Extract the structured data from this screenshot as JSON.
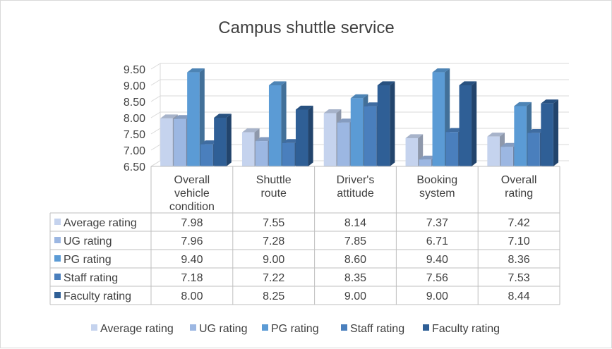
{
  "chart_data": {
    "type": "bar",
    "title": "Campus shuttle service",
    "categories": [
      [
        "Overall",
        "vehicle",
        "condition"
      ],
      [
        "Shuttle",
        "route"
      ],
      [
        "Driver's",
        "attitude"
      ],
      [
        "Booking",
        "system"
      ],
      [
        "Overall",
        "rating"
      ]
    ],
    "y_ticks": [
      "6.50",
      "7.00",
      "7.50",
      "8.00",
      "8.50",
      "9.00",
      "9.50"
    ],
    "ylim": [
      6.5,
      9.5
    ],
    "grid": true,
    "legend_position": "bottom",
    "data_table": true,
    "series": [
      {
        "name": "Average rating",
        "color": "#c5d3ee",
        "values": [
          7.98,
          7.55,
          8.14,
          7.37,
          7.42
        ],
        "labels": [
          "7.98",
          "7.55",
          "8.14",
          "7.37",
          "7.42"
        ]
      },
      {
        "name": "UG rating",
        "color": "#9cb7e2",
        "values": [
          7.96,
          7.28,
          7.85,
          6.71,
          7.1
        ],
        "labels": [
          "7.96",
          "7.28",
          "7.85",
          "6.71",
          "7.10"
        ]
      },
      {
        "name": "PG rating",
        "color": "#5b9bd5",
        "values": [
          9.4,
          9.0,
          8.6,
          9.4,
          8.36
        ],
        "labels": [
          "9.40",
          "9.00",
          "8.60",
          "9.40",
          "8.36"
        ]
      },
      {
        "name": "Staff rating",
        "color": "#4a7fbd",
        "values": [
          7.18,
          7.22,
          8.35,
          7.56,
          7.53
        ],
        "labels": [
          "7.18",
          "7.22",
          "8.35",
          "7.56",
          "7.53"
        ]
      },
      {
        "name": "Faculty rating",
        "color": "#2f5f96",
        "values": [
          8.0,
          8.25,
          9.0,
          9.0,
          8.44
        ],
        "labels": [
          "8.00",
          "8.25",
          "9.00",
          "9.00",
          "8.44"
        ]
      }
    ]
  }
}
